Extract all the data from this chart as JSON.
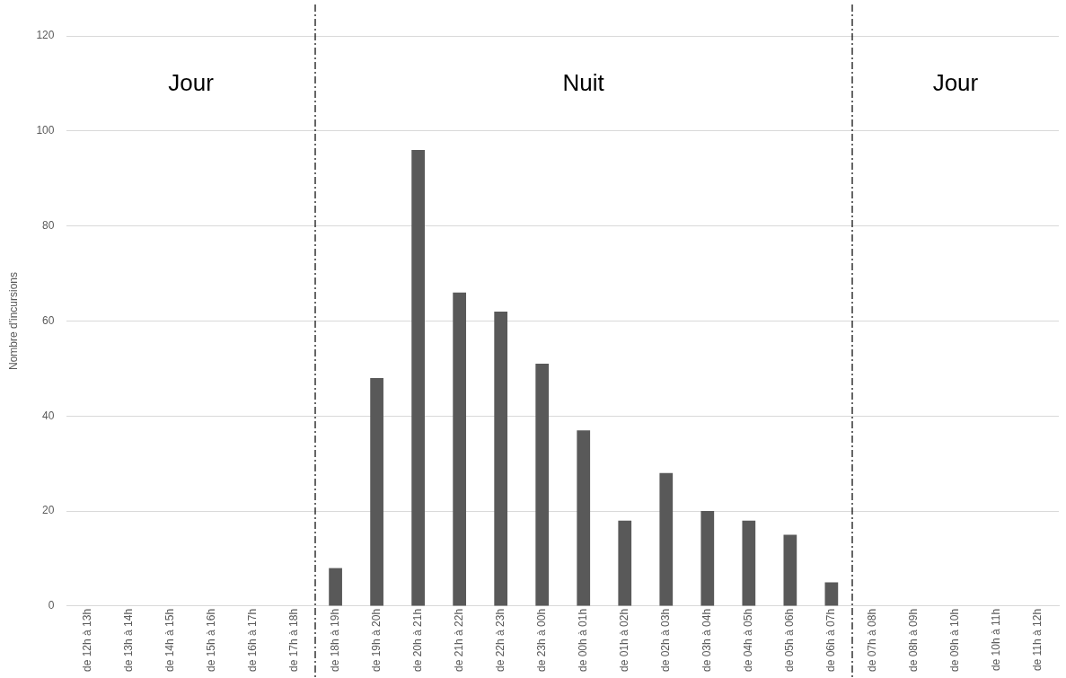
{
  "chart_data": {
    "type": "bar",
    "ylabel": "Nombre d'incursions",
    "categories": [
      "de 12h à 13h",
      "de 13h à 14h",
      "de 14h à 15h",
      "de 15h à 16h",
      "de 16h à 17h",
      "de 17h à 18h",
      "de 18h à 19h",
      "de 19h à 20h",
      "de 20h à 21h",
      "de 21h à 22h",
      "de 22h à 23h",
      "de 23h à 00h",
      "de 00h à 01h",
      "de 01h à 02h",
      "de 02h à 03h",
      "de 03h à 04h",
      "de 04h à 05h",
      "de 05h à 06h",
      "de 06h à 07h",
      "de 07h à 08h",
      "de 08h à 09h",
      "de 09h à 10h",
      "de 10h à 11h",
      "de 11h à 12h"
    ],
    "values": [
      0,
      0,
      0,
      0,
      0,
      0,
      8,
      48,
      96,
      66,
      62,
      51,
      37,
      18,
      28,
      20,
      18,
      15,
      5,
      0,
      0,
      0,
      0,
      0
    ],
    "color": "#595959",
    "ylim": [
      0,
      120
    ],
    "yticks": [
      0,
      20,
      40,
      60,
      80,
      100,
      120
    ],
    "grid": "y",
    "annotations": [
      "Jour",
      "Nuit",
      "Jour"
    ]
  }
}
